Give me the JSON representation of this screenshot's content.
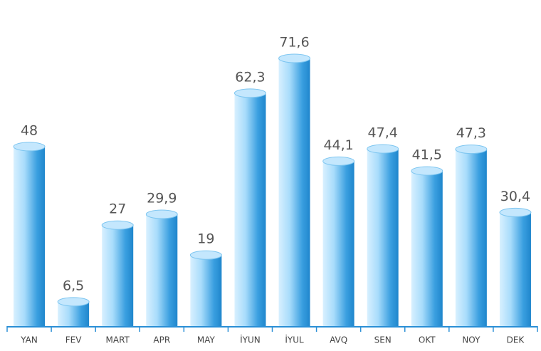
{
  "chart_data": {
    "type": "bar",
    "categories": [
      "YAN",
      "FEV",
      "MART",
      "APR",
      "MAY",
      "İYUN",
      "İYUL",
      "AVQ",
      "SEN",
      "OKT",
      "NOY",
      "DEK"
    ],
    "values": [
      48,
      6.5,
      27,
      29.9,
      19,
      62.3,
      71.6,
      44.1,
      47.4,
      41.5,
      47.3,
      30.4
    ],
    "value_labels": [
      "48",
      "6,5",
      "27",
      "29,9",
      "19",
      "62,3",
      "71,6",
      "44,1",
      "47,4",
      "41,5",
      "47,3",
      "30,4"
    ],
    "color": "#3a9fe0"
  }
}
